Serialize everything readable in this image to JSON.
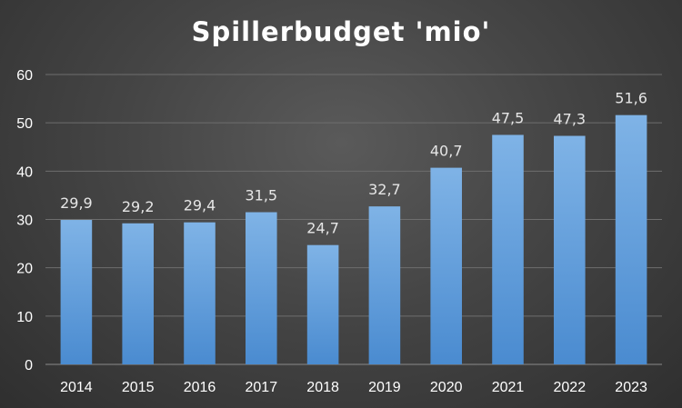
{
  "chart_data": {
    "type": "bar",
    "title": "Spillerbudget 'mio'",
    "xlabel": "",
    "ylabel": "",
    "categories": [
      "2014",
      "2015",
      "2016",
      "2017",
      "2018",
      "2019",
      "2020",
      "2021",
      "2022",
      "2023"
    ],
    "values": [
      29.9,
      29.2,
      29.4,
      31.5,
      24.7,
      32.7,
      40.7,
      47.5,
      47.3,
      51.6
    ],
    "value_labels": [
      "29,9",
      "29,2",
      "29,4",
      "31,5",
      "24,7",
      "32,7",
      "40,7",
      "47,5",
      "47,3",
      "51,6"
    ],
    "ylim": [
      0,
      60
    ],
    "yticks": [
      "0",
      "10",
      "20",
      "30",
      "40",
      "50",
      "60"
    ],
    "grid": true,
    "legend": "none",
    "colors": {
      "bar_top": "#7fb3e6",
      "bar_bottom": "#4a8bd0",
      "grid": "#6e6e6e",
      "axis": "#8a8a8a",
      "text": "#ffffff",
      "data_label": "#e6e6e6"
    }
  }
}
